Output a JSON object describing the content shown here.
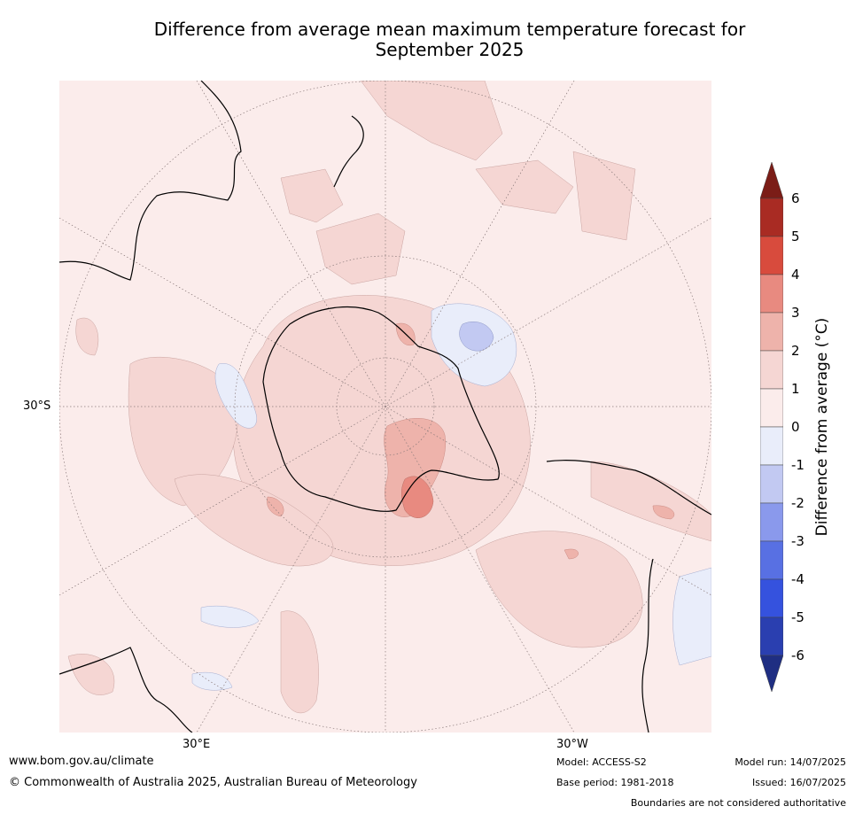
{
  "title_line1": "Difference from average mean maximum temperature forecast for",
  "title_line2": "September 2025",
  "map": {
    "lat_label": "30°S",
    "lon_labels": [
      "30°E",
      "30°W"
    ]
  },
  "colorbar": {
    "title": "Difference from average (°C)",
    "ticks": [
      "6",
      "5",
      "4",
      "3",
      "2",
      "1",
      "0",
      "-1",
      "-2",
      "-3",
      "-4",
      "-5",
      "-6"
    ],
    "colors": [
      "#7b1d17",
      "#a92b23",
      "#d84b3d",
      "#e88a80",
      "#eeb3ab",
      "#f5d6d3",
      "#fbeceb",
      "#e9edfa",
      "#c2c9f2",
      "#8a99ec",
      "#5870e3",
      "#3552de",
      "#2a3fb0",
      "#1f2e82"
    ]
  },
  "footer": {
    "url": "www.bom.gov.au/climate",
    "copyright": "© Commonwealth of Australia 2025, Australian Bureau of Meteorology",
    "model": "Model: ACCESS-S2",
    "base_period": "Base period: 1981-2018",
    "model_run": "Model run: 14/07/2025",
    "issued": "Issued: 16/07/2025",
    "disclaimer": "Boundaries are not considered authoritative"
  }
}
